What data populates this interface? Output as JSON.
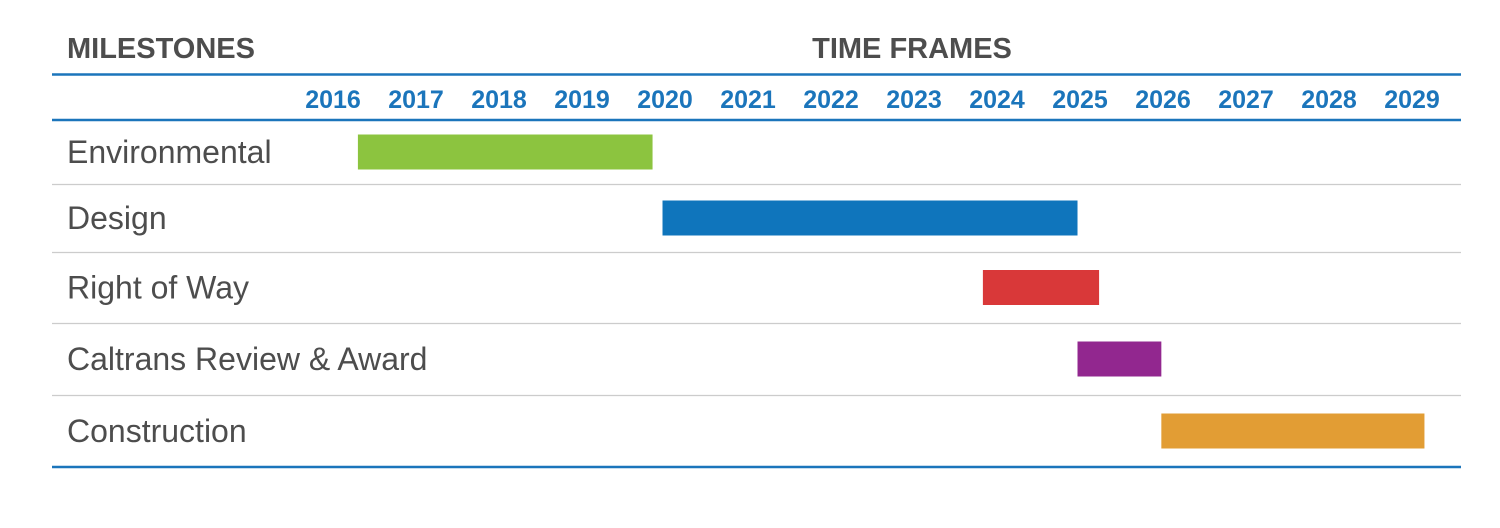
{
  "headers": {
    "milestones": "MILESTONES",
    "time_frames": "TIME FRAMES"
  },
  "colors": {
    "rule": "#1b75bb",
    "year_text": "#1b75bb",
    "header_text": "#4d4d4d",
    "label_text": "#4d4d4d",
    "row_divider": "#cccccc"
  },
  "chart_data": {
    "type": "gantt",
    "x_axis": {
      "ticks": [
        "2016",
        "2017",
        "2018",
        "2019",
        "2020",
        "2021",
        "2022",
        "2023",
        "2024",
        "2025",
        "2026",
        "2027",
        "2028",
        "2029"
      ]
    },
    "tasks": [
      {
        "label": "Environmental",
        "start": 2016.3,
        "end": 2019.85,
        "color": "#8cc43f"
      },
      {
        "label": "Design",
        "start": 2019.97,
        "end": 2024.97,
        "color": "#0f75bc"
      },
      {
        "label": "Right of Way",
        "start": 2023.83,
        "end": 2025.23,
        "color": "#d93839"
      },
      {
        "label": "Caltrans Review & Award",
        "start": 2024.97,
        "end": 2025.98,
        "color": "#92278f"
      },
      {
        "label": "Construction",
        "start": 2025.98,
        "end": 2029.15,
        "color": "#e29d34"
      }
    ]
  }
}
